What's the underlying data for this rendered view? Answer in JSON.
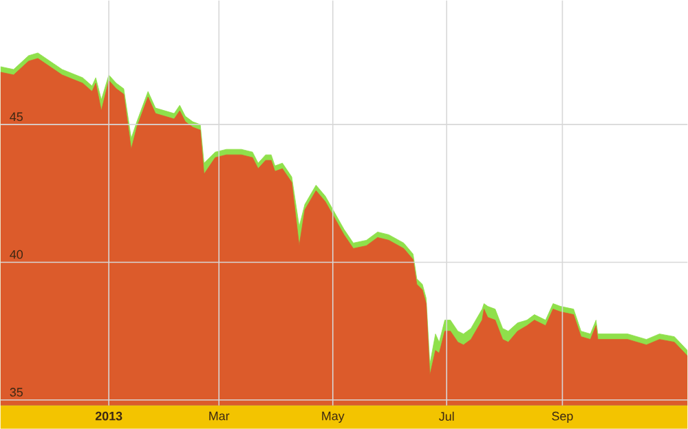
{
  "chart_data": {
    "type": "area",
    "x": [
      "2012-11-04",
      "2012-11-11",
      "2012-11-19",
      "2012-11-24",
      "2012-12-07",
      "2012-12-18",
      "2012-12-23",
      "2012-12-25",
      "2012-12-28",
      "2013-01-01",
      "2013-01-05",
      "2013-01-09",
      "2013-01-13",
      "2013-01-16",
      "2013-01-22",
      "2013-01-26",
      "2013-01-31",
      "2013-02-05",
      "2013-02-08",
      "2013-02-11",
      "2013-02-15",
      "2013-02-19",
      "2013-02-21",
      "2013-02-27",
      "2013-03-05",
      "2013-03-13",
      "2013-03-19",
      "2013-03-22",
      "2013-03-26",
      "2013-03-29",
      "2013-03-31",
      "2013-04-04",
      "2013-04-09",
      "2013-04-13",
      "2013-04-16",
      "2013-04-22",
      "2013-04-27",
      "2013-05-07",
      "2013-05-12",
      "2013-05-19",
      "2013-05-25",
      "2013-05-31",
      "2013-06-08",
      "2013-06-13",
      "2013-06-15",
      "2013-06-18",
      "2013-06-20",
      "2013-06-22",
      "2013-06-25",
      "2013-06-27",
      "2013-06-30",
      "2013-07-03",
      "2013-07-07",
      "2013-07-10",
      "2013-07-14",
      "2013-07-20",
      "2013-07-21",
      "2013-07-23",
      "2013-07-27",
      "2013-07-31",
      "2013-08-03",
      "2013-08-08",
      "2013-08-13",
      "2013-08-17",
      "2013-08-23",
      "2013-08-27",
      "2013-08-31",
      "2013-09-07",
      "2013-09-11",
      "2013-09-16",
      "2013-09-19",
      "2013-09-20",
      "2013-09-26",
      "2013-10-06",
      "2013-10-16",
      "2013-10-23",
      "2013-10-31",
      "2013-11-07"
    ],
    "series": [
      {
        "color": "#8fe04b",
        "values": [
          47.1,
          47.0,
          47.5,
          47.6,
          47.0,
          46.7,
          46.4,
          46.7,
          45.9,
          46.8,
          46.5,
          46.3,
          44.5,
          45.1,
          46.2,
          45.6,
          45.5,
          45.4,
          45.7,
          45.3,
          45.1,
          45.0,
          43.6,
          44.0,
          44.1,
          44.1,
          44.0,
          43.6,
          43.9,
          43.9,
          43.5,
          43.6,
          43.1,
          41.3,
          42.1,
          42.8,
          42.4,
          41.2,
          40.7,
          40.8,
          41.1,
          41.0,
          40.7,
          40.3,
          39.4,
          39.2,
          38.7,
          36.3,
          37.4,
          37.1,
          37.9,
          37.9,
          37.5,
          37.4,
          37.6,
          38.3,
          38.5,
          38.4,
          38.3,
          37.6,
          37.5,
          37.8,
          37.9,
          38.1,
          37.9,
          38.5,
          38.4,
          38.3,
          37.5,
          37.4,
          37.9,
          37.4,
          37.4,
          37.4,
          37.2,
          37.4,
          37.3,
          36.8
        ]
      },
      {
        "color": "#dc5b2b",
        "values": [
          46.9,
          46.8,
          47.3,
          47.4,
          46.8,
          46.5,
          46.2,
          46.5,
          45.5,
          46.6,
          46.3,
          46.1,
          44.1,
          44.9,
          46.0,
          45.4,
          45.3,
          45.2,
          45.5,
          45.1,
          44.9,
          44.8,
          43.2,
          43.8,
          43.9,
          43.9,
          43.8,
          43.4,
          43.7,
          43.7,
          43.3,
          43.4,
          42.9,
          40.6,
          41.9,
          42.6,
          42.2,
          41.0,
          40.5,
          40.6,
          40.9,
          40.8,
          40.5,
          40.1,
          39.2,
          39.0,
          38.5,
          35.9,
          36.8,
          36.7,
          37.5,
          37.5,
          37.1,
          37.0,
          37.2,
          37.9,
          38.3,
          38.0,
          37.9,
          37.2,
          37.1,
          37.5,
          37.7,
          37.9,
          37.7,
          38.3,
          38.2,
          38.1,
          37.3,
          37.2,
          37.7,
          37.2,
          37.2,
          37.2,
          37.0,
          37.2,
          37.1,
          36.6
        ]
      }
    ],
    "xlim": [
      "2012-11-04",
      "2013-11-07"
    ],
    "ylim": [
      34.8,
      49.5
    ],
    "xticks": [
      {
        "value": "2013-01-01",
        "label": "**2013**"
      },
      {
        "value": "2013-03-01",
        "label": "Mar"
      },
      {
        "value": "2013-05-01",
        "label": "May"
      },
      {
        "value": "2013-07-01",
        "label": "Jul"
      },
      {
        "value": "2013-09-01",
        "label": "Sep"
      }
    ],
    "yticks": [
      35,
      40,
      45
    ],
    "grid": true
  }
}
